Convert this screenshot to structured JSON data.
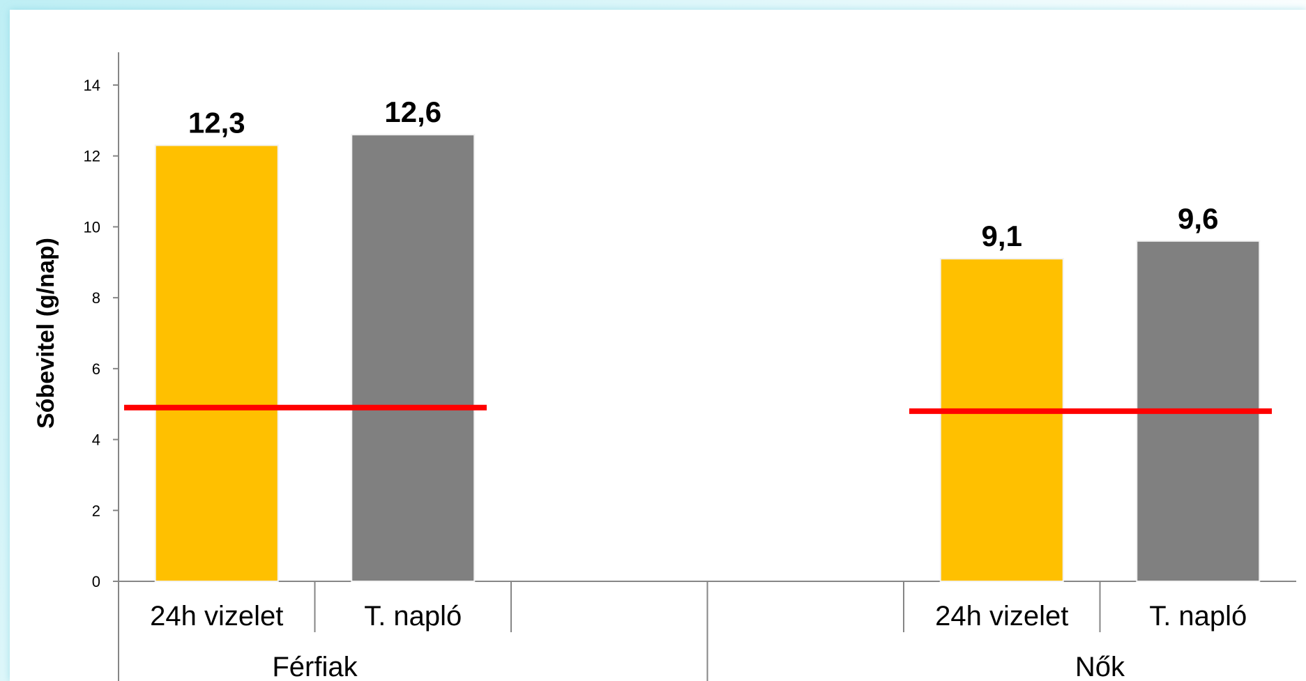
{
  "chart_data": {
    "type": "bar",
    "ylabel": "Sóbevitel  (g/nap)",
    "ylim": [
      0,
      14
    ],
    "yticks": [
      "0",
      "2",
      "4",
      "6",
      "8",
      "10",
      "12",
      "14"
    ],
    "grid": false,
    "legend": "none",
    "groups": [
      {
        "name": "Férfiak",
        "bars": [
          {
            "category": "24h vizelet",
            "value": 12.3,
            "label": "12,3",
            "color": "#FFC000"
          },
          {
            "category": "T. napló",
            "value": 12.6,
            "label": "12,6",
            "color": "#808080"
          }
        ],
        "reference_line": {
          "value": 4.9,
          "color": "#FF0000"
        }
      },
      {
        "name": "Nők",
        "bars": [
          {
            "category": "24h vizelet",
            "value": 9.1,
            "label": "9,1",
            "color": "#FFC000"
          },
          {
            "category": "T. napló",
            "value": 9.6,
            "label": "9,6",
            "color": "#808080"
          }
        ],
        "reference_line": {
          "value": 4.8,
          "color": "#FF0000"
        }
      }
    ]
  }
}
